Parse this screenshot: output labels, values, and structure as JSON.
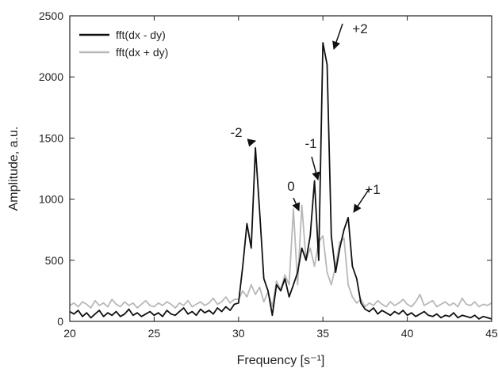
{
  "chart_data": {
    "type": "line",
    "xlabel": "Frequency [s⁻¹]",
    "ylabel": "Amplitude, a.u.",
    "x": [
      20,
      20.25,
      20.5,
      20.75,
      21,
      21.25,
      21.5,
      21.75,
      22,
      22.25,
      22.5,
      22.75,
      23,
      23.25,
      23.5,
      23.75,
      24,
      24.25,
      24.5,
      24.75,
      25,
      25.25,
      25.5,
      25.75,
      26,
      26.25,
      26.5,
      26.75,
      27,
      27.25,
      27.5,
      27.75,
      28,
      28.25,
      28.5,
      28.75,
      29,
      29.25,
      29.5,
      29.75,
      30,
      30.25,
      30.5,
      30.75,
      31,
      31.25,
      31.5,
      31.75,
      32,
      32.25,
      32.5,
      32.75,
      33,
      33.25,
      33.5,
      33.75,
      34,
      34.25,
      34.5,
      34.75,
      35,
      35.25,
      35.5,
      35.75,
      36,
      36.25,
      36.5,
      36.75,
      37,
      37.25,
      37.5,
      37.75,
      38,
      38.25,
      38.5,
      38.75,
      39,
      39.25,
      39.5,
      39.75,
      40,
      40.25,
      40.5,
      40.75,
      41,
      41.25,
      41.5,
      41.75,
      42,
      42.25,
      42.5,
      42.75,
      43,
      43.25,
      43.5,
      43.75,
      44,
      44.25,
      44.5,
      44.75,
      45
    ],
    "series": [
      {
        "name": "fft(dx - dy)",
        "color": "#111111",
        "values": [
          80,
          60,
          90,
          40,
          70,
          30,
          60,
          90,
          40,
          70,
          50,
          80,
          40,
          60,
          100,
          50,
          70,
          40,
          60,
          80,
          50,
          70,
          40,
          90,
          60,
          50,
          80,
          110,
          60,
          80,
          50,
          100,
          70,
          90,
          60,
          110,
          80,
          120,
          90,
          140,
          150,
          450,
          800,
          600,
          1420,
          900,
          350,
          250,
          50,
          300,
          250,
          350,
          200,
          300,
          400,
          600,
          500,
          700,
          1150,
          500,
          2280,
          2100,
          700,
          400,
          600,
          750,
          850,
          450,
          350,
          150,
          100,
          80,
          110,
          60,
          90,
          70,
          50,
          80,
          60,
          90,
          50,
          70,
          40,
          60,
          80,
          50,
          40,
          60,
          30,
          50,
          40,
          70,
          30,
          50,
          40,
          30,
          50,
          20,
          40,
          30,
          20
        ]
      },
      {
        "name": "fft(dx + dy)",
        "color": "#b8b8b8",
        "values": [
          130,
          150,
          120,
          160,
          140,
          110,
          170,
          130,
          150,
          120,
          180,
          140,
          120,
          160,
          130,
          150,
          110,
          140,
          170,
          130,
          120,
          150,
          130,
          160,
          140,
          110,
          150,
          130,
          170,
          120,
          140,
          160,
          130,
          150,
          190,
          140,
          160,
          200,
          150,
          180,
          180,
          250,
          200,
          300,
          220,
          280,
          160,
          240,
          120,
          330,
          260,
          380,
          300,
          920,
          300,
          950,
          500,
          600,
          450,
          650,
          700,
          400,
          300,
          450,
          650,
          680,
          300,
          200,
          150,
          180,
          120,
          150,
          130,
          170,
          140,
          120,
          160,
          130,
          150,
          180,
          140,
          120,
          160,
          220,
          130,
          150,
          170,
          120,
          140,
          160,
          130,
          150,
          120,
          190,
          140,
          130,
          160,
          120,
          140,
          130,
          150
        ]
      }
    ],
    "xlim": [
      20,
      45
    ],
    "xticks": [
      20,
      25,
      30,
      35,
      40,
      45
    ],
    "ylim": [
      0,
      2500
    ],
    "yticks": [
      0,
      500,
      1000,
      1500,
      2000,
      2500
    ],
    "legend": "upper left",
    "grid": false,
    "annotations": [
      "-2",
      "0",
      "-1",
      "+2",
      "+1"
    ]
  }
}
